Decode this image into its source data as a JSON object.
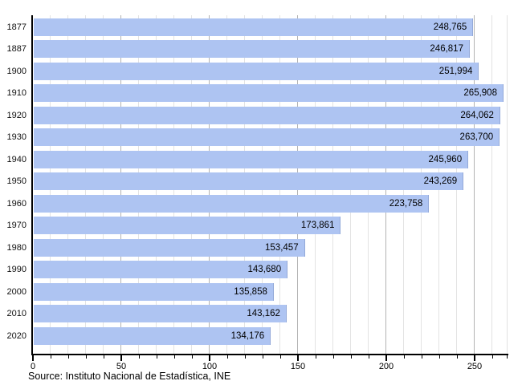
{
  "chart_data": {
    "type": "bar",
    "orientation": "horizontal",
    "title": "",
    "xlabel": "",
    "ylabel": "",
    "categories": [
      "1877",
      "1887",
      "1900",
      "1910",
      "1920",
      "1930",
      "1940",
      "1950",
      "1960",
      "1970",
      "1980",
      "1990",
      "2000",
      "2010",
      "2020"
    ],
    "values": [
      248765,
      246817,
      251994,
      265908,
      264062,
      263700,
      245960,
      243269,
      223758,
      173861,
      153457,
      143680,
      135858,
      143162,
      134176
    ],
    "value_labels": [
      "248,765",
      "246,817",
      "251,994",
      "265,908",
      "264,062",
      "263,700",
      "245,960",
      "243,269",
      "223,758",
      "173,861",
      "153,457",
      "143,680",
      "135,858",
      "143,162",
      "134,176"
    ],
    "x_axis": {
      "tick_labels": [
        "0",
        "50",
        "100",
        "150",
        "200",
        "250"
      ],
      "major_ticks": [
        0,
        50,
        100,
        150,
        200,
        250
      ],
      "minor_tick_step": 10,
      "xlim": [
        0,
        268
      ],
      "unit_scale": 1000
    },
    "grid": "vertical",
    "legend": "none",
    "colors": {
      "bar_fill": "#aec4f2",
      "bar_edge": "#93a9d9",
      "grid_minor": "#e3e3e3",
      "grid_major": "#b3b3b3",
      "axis": "#000000",
      "label_text": "#000000"
    }
  },
  "source": "Source: Instituto Nacional de Estadística, INE"
}
